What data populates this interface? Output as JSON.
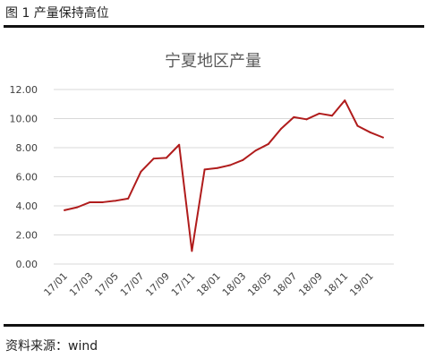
{
  "figure_caption": "图 1  产量保持高位",
  "source_note": "资料来源：wind",
  "colors": {
    "line": "#b01c1c",
    "grid": "#d9d9d9",
    "axis_text": "#404040",
    "title": "#595959"
  },
  "chart_data": {
    "type": "line",
    "title": "宁夏地区产量",
    "xlabel": "",
    "ylabel": "",
    "ylim": [
      0,
      12
    ],
    "yticks": [
      "0.00",
      "2.00",
      "4.00",
      "6.00",
      "8.00",
      "10.00",
      "12.00"
    ],
    "grid": true,
    "legend": "none",
    "categories": [
      "17/01",
      "17/02",
      "17/03",
      "17/04",
      "17/05",
      "17/06",
      "17/07",
      "17/08",
      "17/09",
      "17/10",
      "17/11",
      "17/12",
      "18/01",
      "18/02",
      "18/03",
      "18/04",
      "18/05",
      "18/06",
      "18/07",
      "18/08",
      "18/09",
      "18/10",
      "18/11",
      "18/12",
      "19/01",
      "19/02"
    ],
    "xtick_labels": [
      "17/01",
      "",
      "17/03",
      "",
      "17/05",
      "",
      "17/07",
      "",
      "17/09",
      "",
      "17/11",
      "",
      "18/01",
      "",
      "18/03",
      "",
      "18/05",
      "",
      "18/07",
      "",
      "18/09",
      "",
      "18/11",
      "",
      "19/01",
      ""
    ],
    "series": [
      {
        "values": [
          3.7,
          3.9,
          4.25,
          4.25,
          4.35,
          4.5,
          6.35,
          7.25,
          7.3,
          8.2,
          0.9,
          6.5,
          6.6,
          6.8,
          7.15,
          7.8,
          8.25,
          9.3,
          10.1,
          9.95,
          10.35,
          10.2,
          11.25,
          9.5,
          9.05,
          8.7
        ]
      }
    ]
  }
}
